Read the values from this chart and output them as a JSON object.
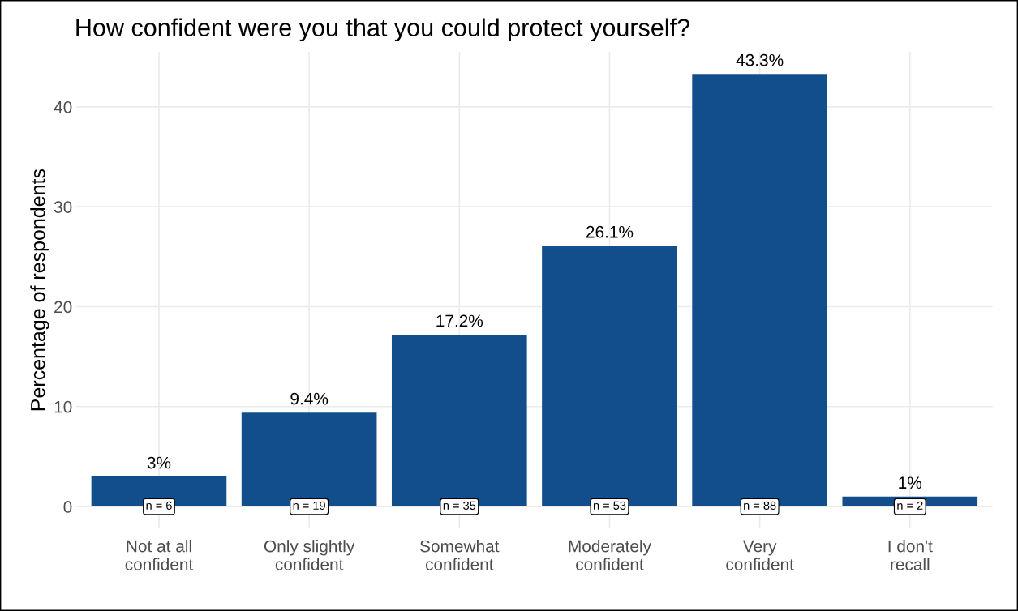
{
  "chart_data": {
    "type": "bar",
    "title": "How confident were you that you could protect yourself?",
    "ylabel": "Percentage of respondents",
    "categories": [
      "Not at all\nconfident",
      "Only slightly\nconfident",
      "Somewhat\nconfident",
      "Moderately\nconfident",
      "Very\nconfident",
      "I don't\nrecall"
    ],
    "values": [
      3,
      9.4,
      17.2,
      26.1,
      43.3,
      1
    ],
    "value_labels": [
      "3%",
      "9.4%",
      "17.2%",
      "26.1%",
      "43.3%",
      "1%"
    ],
    "color": "#114e8b",
    "ylim": [
      -2.2,
      45.5
    ],
    "yticks": [
      0,
      10,
      20,
      30,
      40
    ],
    "grid": true,
    "annotations": [
      {
        "text": "n = 6",
        "x": "Not at all\nconfident",
        "y": 0
      },
      {
        "text": "n = 19",
        "x": "Only slightly\nconfident",
        "y": 0
      },
      {
        "text": "n = 35",
        "x": "Somewhat\nconfident",
        "y": 0
      },
      {
        "text": "n = 53",
        "x": "Moderately\nconfident",
        "y": 0
      },
      {
        "text": "n = 88",
        "x": "Very\nconfident",
        "y": 0
      },
      {
        "text": "n = 2",
        "x": "I don't\nrecall",
        "y": 0
      }
    ]
  }
}
